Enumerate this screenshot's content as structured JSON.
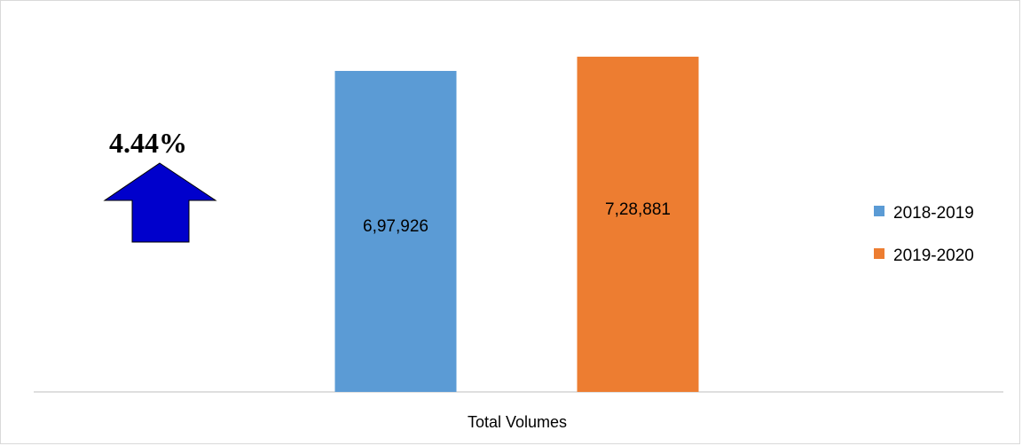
{
  "annotation": {
    "change_text": "4.44%",
    "arrow_icon": "up-arrow-icon",
    "arrow_color": "#0000CC"
  },
  "chart_data": {
    "type": "bar",
    "categories": [
      "Total Volumes"
    ],
    "series": [
      {
        "name": "2018-2019",
        "values": [
          697926
        ],
        "value_label": "6,97,926",
        "color": "#5B9BD5"
      },
      {
        "name": "2019-2020",
        "values": [
          728881
        ],
        "value_label": "7,28,881",
        "color": "#ED7D31"
      }
    ],
    "title": "",
    "xlabel": "",
    "ylabel": "",
    "ylim": [
      0,
      775000
    ],
    "grid": false,
    "legend_position": "right"
  }
}
